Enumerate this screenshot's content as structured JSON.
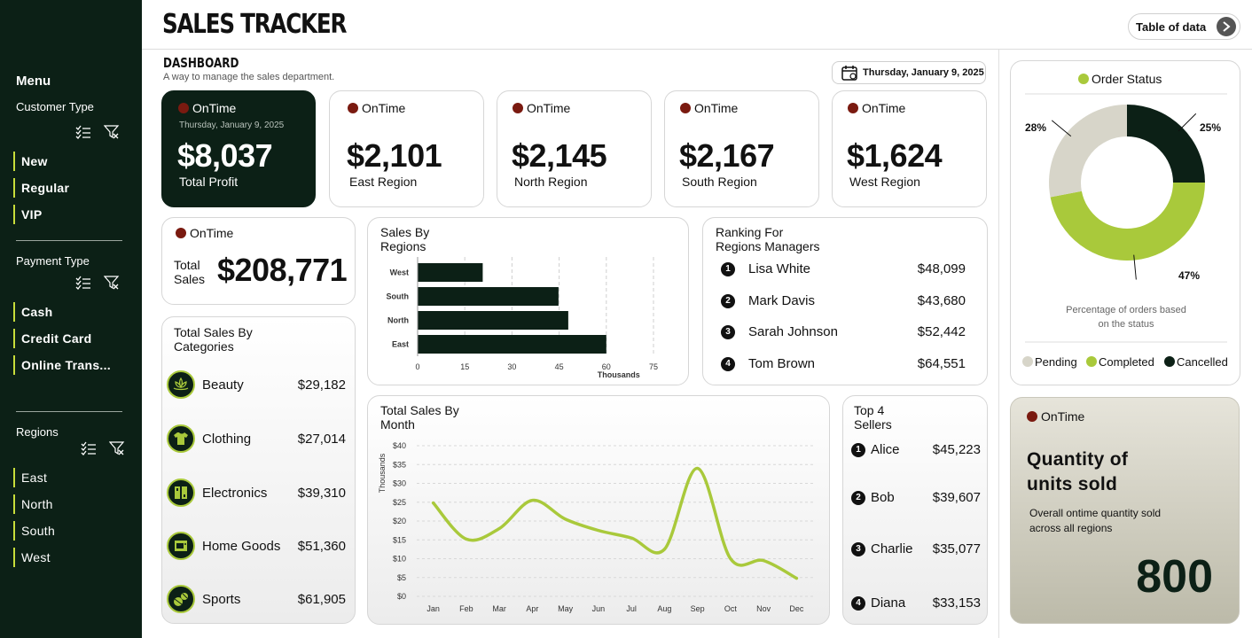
{
  "sidebar": {
    "menu_title": "Menu",
    "customer_type": {
      "title": "Customer Type",
      "items": [
        "New",
        "Regular",
        "VIP"
      ]
    },
    "payment_type": {
      "title": "Payment Type",
      "items": [
        "Cash",
        "Credit Card",
        "Online Trans..."
      ]
    },
    "regions": {
      "title": "Regions",
      "items": [
        "East",
        "North",
        "South",
        "West"
      ]
    }
  },
  "header": {
    "title": "SALES TRACKER",
    "table_button": "Table of data",
    "dashboard_title": "DASHBOARD",
    "dashboard_subtitle": "A way to manage the sales department.",
    "date": "Thursday, January 9, 2025"
  },
  "kpis": {
    "status_label": "OnTime",
    "total_profit": {
      "date": "Thursday, January 9, 2025",
      "value": "$8,037",
      "label": "Total Profit"
    },
    "regions": [
      {
        "value": "$2,101",
        "label": "East Region"
      },
      {
        "value": "$2,145",
        "label": "North Region"
      },
      {
        "value": "$2,167",
        "label": "South Region"
      },
      {
        "value": "$1,624",
        "label": "West Region"
      }
    ],
    "total_sales": {
      "label_line1": "Total",
      "label_line2": "Sales",
      "value": "$208,771"
    }
  },
  "categories": {
    "title_line1": "Total Sales By",
    "title_line2": "Categories",
    "items": [
      {
        "name": "Beauty",
        "value": "$29,182",
        "icon": "lotus-icon"
      },
      {
        "name": "Clothing",
        "value": "$27,014",
        "icon": "shirt-icon"
      },
      {
        "name": "Electronics",
        "value": "$39,310",
        "icon": "devices-icon"
      },
      {
        "name": "Home Goods",
        "value": "$51,360",
        "icon": "appliance-icon"
      },
      {
        "name": "Sports",
        "value": "$61,905",
        "icon": "sports-ball-icon"
      }
    ]
  },
  "ranking": {
    "title_line1": "Ranking For",
    "title_line2": "Regions Managers",
    "items": [
      {
        "rank": "1",
        "name": "Lisa White",
        "value": "$48,099"
      },
      {
        "rank": "2",
        "name": "Mark Davis",
        "value": "$43,680"
      },
      {
        "rank": "3",
        "name": "Sarah Johnson",
        "value": "$52,442"
      },
      {
        "rank": "4",
        "name": "Tom Brown",
        "value": "$64,551"
      }
    ]
  },
  "top_sellers": {
    "title_line1": "Top 4",
    "title_line2": "Sellers",
    "items": [
      {
        "rank": "1",
        "name": "Alice",
        "value": "$45,223"
      },
      {
        "rank": "2",
        "name": "Bob",
        "value": "$39,607"
      },
      {
        "rank": "3",
        "name": "Charlie",
        "value": "$35,077"
      },
      {
        "rank": "4",
        "name": "Diana",
        "value": "$33,153"
      }
    ]
  },
  "order_status_card": {
    "footnote_line1": "Percentage of orders based",
    "footnote_line2": "on the status"
  },
  "quantity_card": {
    "status_label": "OnTime",
    "title_line1": "Quantity of",
    "title_line2": "units sold",
    "desc_line1": "Overall ontime quantity sold",
    "desc_line2": "across all regions",
    "value": "800"
  },
  "colors": {
    "dark_green": "#0c2016",
    "lime": "#a9c93b",
    "beige": "#d7d5c9",
    "status_dot": "#7a1a10"
  },
  "chart_data": [
    {
      "type": "bar",
      "orientation": "horizontal",
      "title": "Sales By Regions",
      "categories": [
        "West",
        "South",
        "North",
        "East"
      ],
      "values": [
        20.7,
        44.8,
        47.9,
        60.0
      ],
      "xlim": [
        0,
        75
      ],
      "xticks": [
        0,
        15,
        30,
        45,
        60,
        75
      ],
      "xlabel": "Thousands"
    },
    {
      "type": "line",
      "title": "Total Sales By Month",
      "x": [
        "Jan",
        "Feb",
        "Mar",
        "Apr",
        "May",
        "Jun",
        "Jul",
        "Aug",
        "Sep",
        "Oct",
        "Nov",
        "Dec"
      ],
      "values": [
        24.8,
        15.2,
        18,
        25.5,
        20.5,
        17.5,
        15.5,
        12.5,
        34,
        10,
        9.5,
        4.8
      ],
      "ylim": [
        0,
        40
      ],
      "yticks": [
        "$0",
        "$5",
        "$10",
        "$15",
        "$20",
        "$25",
        "$30",
        "$35",
        "$40"
      ],
      "ylabel": "Thousands"
    },
    {
      "type": "pie",
      "title": "Order Status",
      "labels": [
        "Cancelled",
        "Completed",
        "Pending"
      ],
      "values": [
        25,
        47,
        28
      ],
      "value_labels": [
        "25%",
        "47%",
        "28%"
      ],
      "colors": [
        "#0c2016",
        "#a9c93b",
        "#d7d5c9"
      ],
      "legend": [
        "Pending",
        "Completed",
        "Cancelled"
      ]
    }
  ]
}
